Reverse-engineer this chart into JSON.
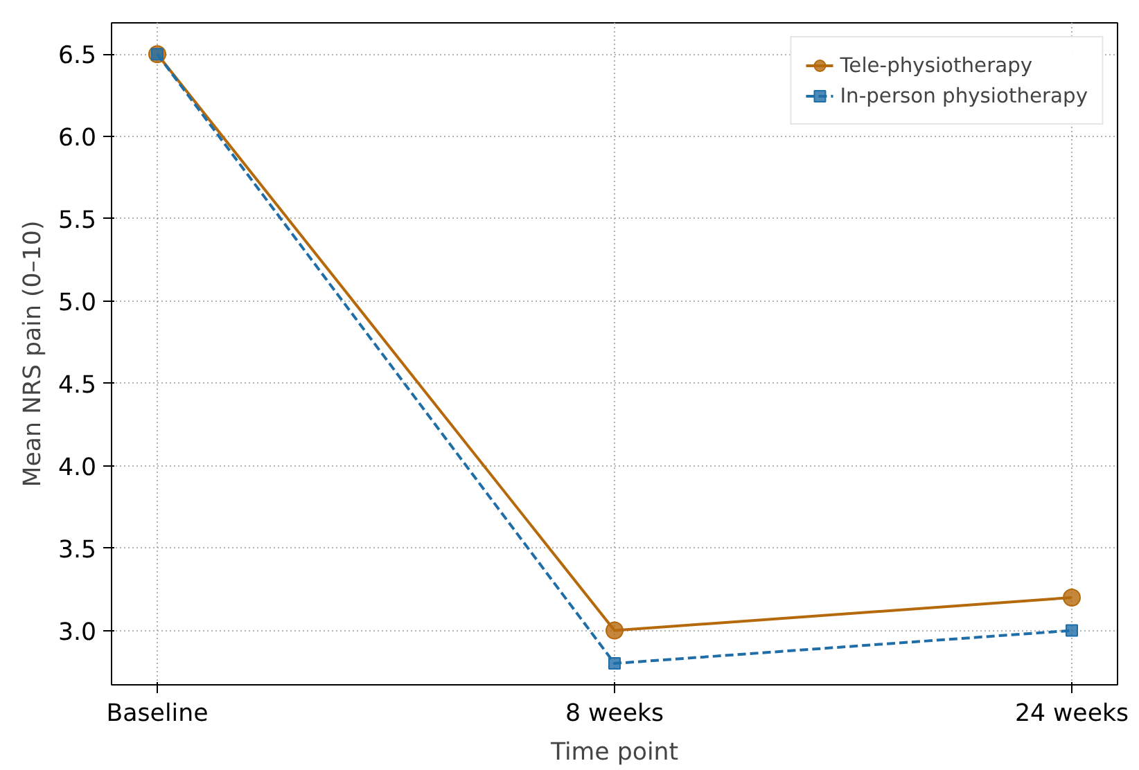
{
  "chart_data": {
    "type": "line",
    "xlabel": "Time point",
    "ylabel": "Mean NRS pain (0–10)",
    "categories": [
      "Baseline",
      "8 weeks",
      "24 weeks"
    ],
    "ylim": [
      2.67,
      6.69
    ],
    "yticks": [
      {
        "value": 3.0,
        "label": "3.0"
      },
      {
        "value": 3.5,
        "label": "3.5"
      },
      {
        "value": 4.0,
        "label": "4.0"
      },
      {
        "value": 4.5,
        "label": "4.5"
      },
      {
        "value": 5.0,
        "label": "5.0"
      },
      {
        "value": 5.5,
        "label": "5.5"
      },
      {
        "value": 6.0,
        "label": "6.0"
      },
      {
        "value": 6.5,
        "label": "6.5"
      }
    ],
    "grid": true,
    "legend": "top right",
    "series": [
      {
        "name": "Tele-physiotherapy",
        "color": "#b5690b",
        "values": [
          6.5,
          3.0,
          3.2
        ],
        "marker": "circle",
        "line_style": "solid"
      },
      {
        "name": "In-person physiotherapy",
        "color": "#1f6ea8",
        "values": [
          6.5,
          2.8,
          3.0
        ],
        "marker": "square",
        "line_style": "dashed"
      }
    ]
  }
}
